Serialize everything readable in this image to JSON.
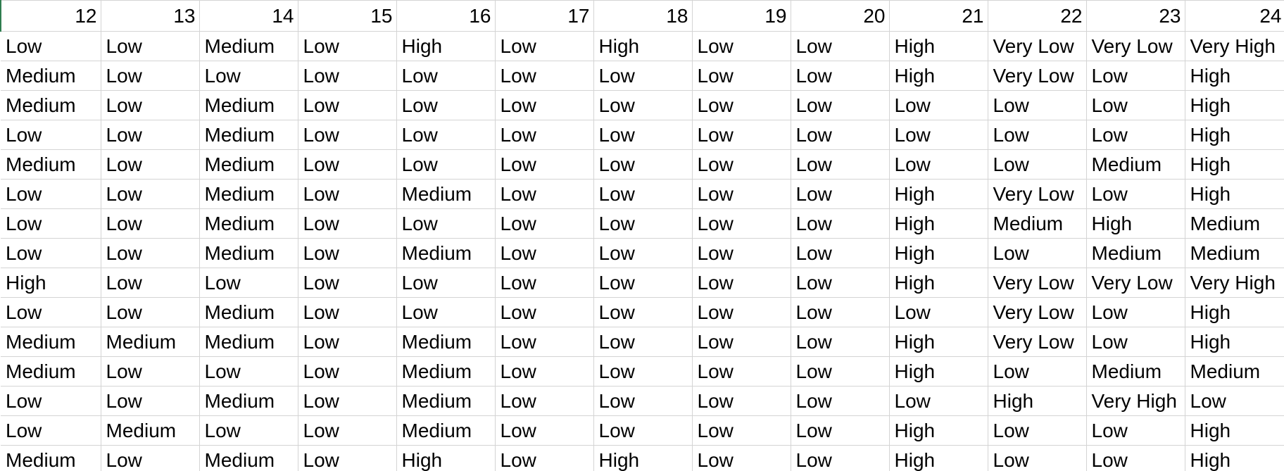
{
  "sheet": {
    "headers": [
      "12",
      "13",
      "14",
      "15",
      "16",
      "17",
      "18",
      "19",
      "20",
      "21",
      "22",
      "23",
      "24"
    ],
    "rows": [
      [
        "Low",
        "Low",
        "Medium",
        "Low",
        "High",
        "Low",
        "High",
        "Low",
        "Low",
        "High",
        "Very Low",
        "Very Low",
        "Very High"
      ],
      [
        "Medium",
        "Low",
        "Low",
        "Low",
        "Low",
        "Low",
        "Low",
        "Low",
        "Low",
        "High",
        "Very Low",
        "Low",
        "High"
      ],
      [
        "Medium",
        "Low",
        "Medium",
        "Low",
        "Low",
        "Low",
        "Low",
        "Low",
        "Low",
        "Low",
        "Low",
        "Low",
        "High"
      ],
      [
        "Low",
        "Low",
        "Medium",
        "Low",
        "Low",
        "Low",
        "Low",
        "Low",
        "Low",
        "Low",
        "Low",
        "Low",
        "High"
      ],
      [
        "Medium",
        "Low",
        "Medium",
        "Low",
        "Low",
        "Low",
        "Low",
        "Low",
        "Low",
        "Low",
        "Low",
        "Medium",
        "High"
      ],
      [
        "Low",
        "Low",
        "Medium",
        "Low",
        "Medium",
        "Low",
        "Low",
        "Low",
        "Low",
        "High",
        "Very Low",
        "Low",
        "High"
      ],
      [
        "Low",
        "Low",
        "Medium",
        "Low",
        "Low",
        "Low",
        "Low",
        "Low",
        "Low",
        "High",
        "Medium",
        "High",
        "Medium"
      ],
      [
        "Low",
        "Low",
        "Medium",
        "Low",
        "Medium",
        "Low",
        "Low",
        "Low",
        "Low",
        "High",
        "Low",
        "Medium",
        "Medium"
      ],
      [
        "High",
        "Low",
        "Low",
        "Low",
        "Low",
        "Low",
        "Low",
        "Low",
        "Low",
        "High",
        "Very Low",
        "Very Low",
        "Very High"
      ],
      [
        "Low",
        "Low",
        "Medium",
        "Low",
        "Low",
        "Low",
        "Low",
        "Low",
        "Low",
        "Low",
        "Very Low",
        "Low",
        "High"
      ],
      [
        "Medium",
        "Medium",
        "Medium",
        "Low",
        "Medium",
        "Low",
        "Low",
        "Low",
        "Low",
        "High",
        "Very Low",
        "Low",
        "High"
      ],
      [
        "Medium",
        "Low",
        "Low",
        "Low",
        "Medium",
        "Low",
        "Low",
        "Low",
        "Low",
        "High",
        "Low",
        "Medium",
        "Medium"
      ],
      [
        "Low",
        "Low",
        "Medium",
        "Low",
        "Medium",
        "Low",
        "Low",
        "Low",
        "Low",
        "Low",
        "High",
        "Very High",
        "Low"
      ],
      [
        "Low",
        "Medium",
        "Low",
        "Low",
        "Medium",
        "Low",
        "Low",
        "Low",
        "Low",
        "High",
        "Low",
        "Low",
        "High"
      ],
      [
        "Medium",
        "Low",
        "Medium",
        "Low",
        "High",
        "Low",
        "High",
        "Low",
        "Low",
        "High",
        "Low",
        "Low",
        "High"
      ]
    ]
  }
}
